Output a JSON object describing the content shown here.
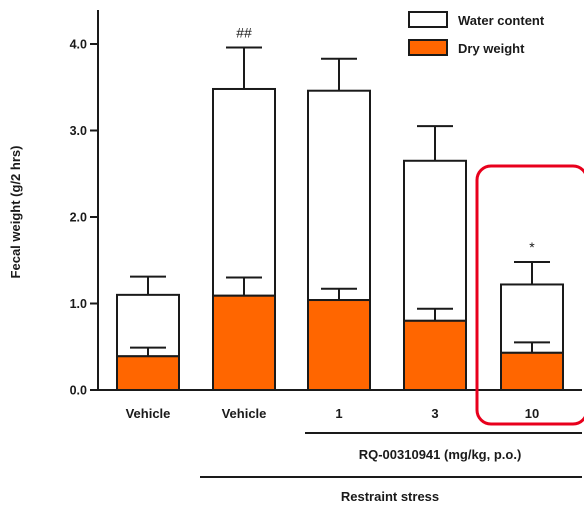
{
  "chart_data": {
    "type": "bar",
    "stacked": true,
    "ylabel": "Fecal weight (g/2 hrs)",
    "ylim": [
      0,
      4.4
    ],
    "yticks": [
      "0.0",
      "1.0",
      "2.0",
      "3.0",
      "4.0"
    ],
    "categories": [
      "Vehicle",
      "Vehicle",
      "1",
      "3",
      "10"
    ],
    "series": [
      {
        "name": "Dry weight",
        "color": "#ff6600",
        "values": [
          0.39,
          1.09,
          1.04,
          0.8,
          0.43
        ],
        "errors": [
          0.1,
          0.21,
          0.13,
          0.14,
          0.12
        ]
      },
      {
        "name": "Water content",
        "color": "#ffffff",
        "values": [
          0.71,
          2.39,
          2.42,
          1.85,
          0.79
        ],
        "totals": [
          1.1,
          3.48,
          3.46,
          2.65,
          1.22
        ],
        "errors": [
          0.21,
          0.48,
          0.37,
          0.4,
          0.26
        ]
      }
    ],
    "annotations": [
      {
        "category_index": 1,
        "text": "##"
      },
      {
        "category_index": 4,
        "text": "*"
      }
    ],
    "group_labels": [
      {
        "text": "RQ-00310941 (mg/kg, p.o.)",
        "from": 2,
        "to": 4
      },
      {
        "text": "Restraint stress",
        "from": 1,
        "to": 4
      }
    ],
    "highlight": {
      "category_index": 4,
      "color": "#e8001c"
    },
    "legend_position": "top-right",
    "grid": false
  }
}
